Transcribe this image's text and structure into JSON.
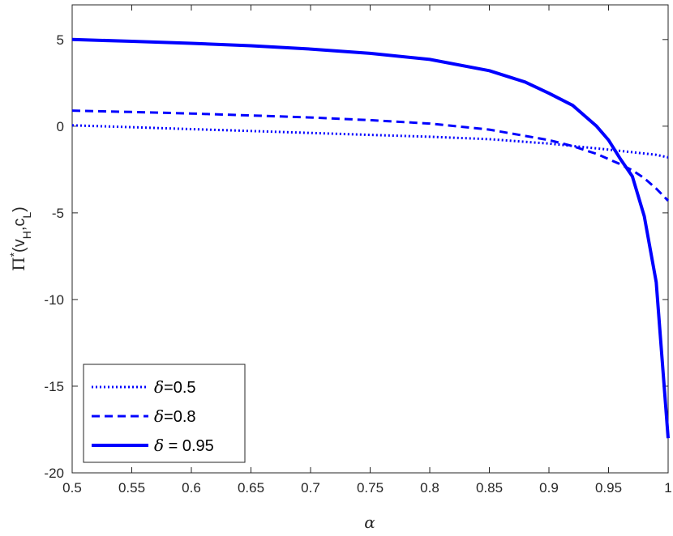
{
  "chart_data": {
    "type": "line",
    "xlabel": "α",
    "ylabel": {
      "main": "Π",
      "sup": "*",
      "open": "(v",
      "sub1": "H",
      "mid": ",c",
      "sub2": "L",
      "close": ")"
    },
    "xlim": [
      0.5,
      1.0
    ],
    "ylim": [
      -20,
      7
    ],
    "x_ticks": [
      0.5,
      0.55,
      0.6,
      0.65,
      0.7,
      0.75,
      0.8,
      0.85,
      0.9,
      0.95,
      1
    ],
    "x_tick_labels": [
      "0.5",
      "0.55",
      "0.6",
      "0.65",
      "0.7",
      "0.75",
      "0.8",
      "0.85",
      "0.9",
      "0.95",
      "1"
    ],
    "y_ticks": [
      5,
      0,
      -5,
      -10,
      -15,
      -20
    ],
    "y_tick_labels": [
      "5",
      "0",
      "-5",
      "-10",
      "-15",
      "-20"
    ],
    "grid": false,
    "legend_placement": "bottom-left",
    "color": "#0000ff",
    "series": [
      {
        "legend_symbol": "δ",
        "legend_value": "=0.5",
        "style": "dotted",
        "x": [
          0.5,
          0.55,
          0.6,
          0.65,
          0.7,
          0.75,
          0.8,
          0.85,
          0.9,
          0.95,
          0.99,
          1.0
        ],
        "y": [
          0.05,
          -0.06,
          -0.17,
          -0.28,
          -0.39,
          -0.5,
          -0.61,
          -0.75,
          -1.0,
          -1.35,
          -1.65,
          -1.8
        ]
      },
      {
        "legend_symbol": "δ",
        "legend_value": "=0.8",
        "style": "dashed",
        "x": [
          0.5,
          0.55,
          0.6,
          0.65,
          0.7,
          0.75,
          0.8,
          0.85,
          0.9,
          0.92,
          0.94,
          0.96,
          0.97,
          0.98,
          0.99,
          1.0
        ],
        "y": [
          0.9,
          0.82,
          0.73,
          0.62,
          0.5,
          0.35,
          0.15,
          -0.2,
          -0.8,
          -1.15,
          -1.6,
          -2.2,
          -2.55,
          -3.0,
          -3.6,
          -4.3
        ]
      },
      {
        "legend_symbol": "δ",
        "legend_value": " = 0.95",
        "style": "solid",
        "x": [
          0.5,
          0.55,
          0.6,
          0.65,
          0.7,
          0.75,
          0.8,
          0.85,
          0.88,
          0.9,
          0.92,
          0.94,
          0.95,
          0.96,
          0.97,
          0.98,
          0.99,
          1.0
        ],
        "y": [
          5.0,
          4.9,
          4.78,
          4.64,
          4.45,
          4.2,
          3.85,
          3.2,
          2.55,
          1.9,
          1.2,
          0.0,
          -0.8,
          -1.9,
          -2.9,
          -5.2,
          -9.0,
          -18.0
        ]
      }
    ]
  }
}
